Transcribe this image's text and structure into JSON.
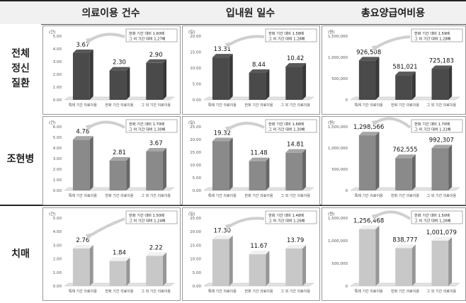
{
  "columns": [
    "의료이용 건수",
    "입내원 일수",
    "총요양급여비용"
  ],
  "rows": [
    "전체\n정신\n질환",
    "조현병",
    "치매"
  ],
  "categories": [
    "특례 기간 의료이용",
    "한화 기간 의료이용",
    "그 외 기간 의료이용"
  ],
  "chart_data": [
    {
      "type": "bar",
      "row": 0,
      "col": 0,
      "unit": "(건)",
      "yticks": [
        "0.00",
        "1.00",
        "2.00",
        "3.00",
        "4.00",
        "5.00"
      ],
      "ylim": [
        0,
        5
      ],
      "values": [
        3.67,
        2.3,
        2.9
      ],
      "labels": [
        "3.67",
        "2.30",
        "2.90"
      ],
      "annotation": [
        "한화 기간 대비 1.60배",
        "그 외 기간 대비 1.27배"
      ]
    },
    {
      "type": "bar",
      "row": 0,
      "col": 1,
      "unit": "(일)",
      "yticks": [
        "0.00",
        "5.00",
        "10.00",
        "15.00",
        "20.00"
      ],
      "ylim": [
        0,
        20
      ],
      "values": [
        13.31,
        8.44,
        10.42
      ],
      "labels": [
        "13.31",
        "8.44",
        "10.42"
      ],
      "annotation": [
        "한화 기간 대비 1.58배",
        "그 외 기간 대비 1.28배"
      ]
    },
    {
      "type": "bar",
      "row": 0,
      "col": 2,
      "unit": "(원)",
      "yticks": [
        "0",
        "500,000",
        "1,000,000",
        "1,500,000"
      ],
      "ylim": [
        0,
        1500000
      ],
      "values": [
        926508,
        581021,
        725183
      ],
      "labels": [
        "926,508",
        "581,021",
        "725,183"
      ],
      "annotation": [
        "한화 기간 대비 1.59배",
        "그 외 기간 대비 1.28배"
      ]
    },
    {
      "type": "bar",
      "row": 1,
      "col": 0,
      "unit": "(건)",
      "yticks": [
        "0.00",
        "1.00",
        "2.00",
        "3.00",
        "4.00",
        "5.00",
        "6.00"
      ],
      "ylim": [
        0,
        6
      ],
      "values": [
        4.78,
        2.81,
        3.67
      ],
      "labels": [
        "4.78",
        "2.81",
        "3.67"
      ],
      "annotation": [
        "한화 기간 대비 1.70배",
        "그 외 기간 대비 1.30배"
      ]
    },
    {
      "type": "bar",
      "row": 1,
      "col": 1,
      "unit": "(일)",
      "yticks": [
        "0.00",
        "5.00",
        "10.00",
        "15.00",
        "20.00",
        "25.00"
      ],
      "ylim": [
        0,
        25
      ],
      "values": [
        19.32,
        11.48,
        14.81
      ],
      "labels": [
        "19.32",
        "11.48",
        "14.81"
      ],
      "annotation": [
        "한화 기간 대비 1.68배",
        "그 외 기간 대비 1.30배"
      ]
    },
    {
      "type": "bar",
      "row": 1,
      "col": 2,
      "unit": "(원)",
      "yticks": [
        "0",
        "500,000",
        "1,000,000",
        "1,500,000"
      ],
      "ylim": [
        0,
        1500000
      ],
      "values": [
        1298566,
        762555,
        992307
      ],
      "labels": [
        "1,298,566",
        "762,555",
        "992,307"
      ],
      "annotation": [
        "한화 기간 대비 1.70배",
        "그 외 기간 대비 1.31배"
      ]
    },
    {
      "type": "bar",
      "row": 2,
      "col": 0,
      "unit": "(건)",
      "yticks": [
        "0.00",
        "1.00",
        "2.00",
        "3.00",
        "4.00",
        "5.00"
      ],
      "ylim": [
        0,
        5
      ],
      "values": [
        2.76,
        1.84,
        2.22
      ],
      "labels": [
        "2.76",
        "1.84",
        "2.22"
      ],
      "annotation": [
        "한화 기간 대비 1.50배",
        "그 외 기간 대비 1.24배"
      ]
    },
    {
      "type": "bar",
      "row": 2,
      "col": 1,
      "unit": "(일)",
      "yticks": [
        "0.00",
        "5.00",
        "10.00",
        "15.00",
        "20.00",
        "25.00"
      ],
      "ylim": [
        0,
        25
      ],
      "values": [
        17.3,
        11.67,
        13.79
      ],
      "labels": [
        "17.30",
        "11.67",
        "13.79"
      ],
      "annotation": [
        "한화 기간 대비 1.48배",
        "그 외 기간 대비 1.26배"
      ]
    },
    {
      "type": "bar",
      "row": 2,
      "col": 2,
      "unit": "(원)",
      "yticks": [
        "0",
        "500,000",
        "1,000,000",
        "1,500,000"
      ],
      "ylim": [
        0,
        1500000
      ],
      "values": [
        1256468,
        838777,
        1001079
      ],
      "labels": [
        "1,256,468",
        "838,777",
        "1,001,079"
      ],
      "annotation": [
        "한화 기간 대비 1.50배",
        "그 외 기간 대비 1.26배"
      ]
    }
  ],
  "row_colors": {
    "0": "#4a4a4a",
    "1": "#8a8a8a",
    "2": "#c8c8c8"
  }
}
